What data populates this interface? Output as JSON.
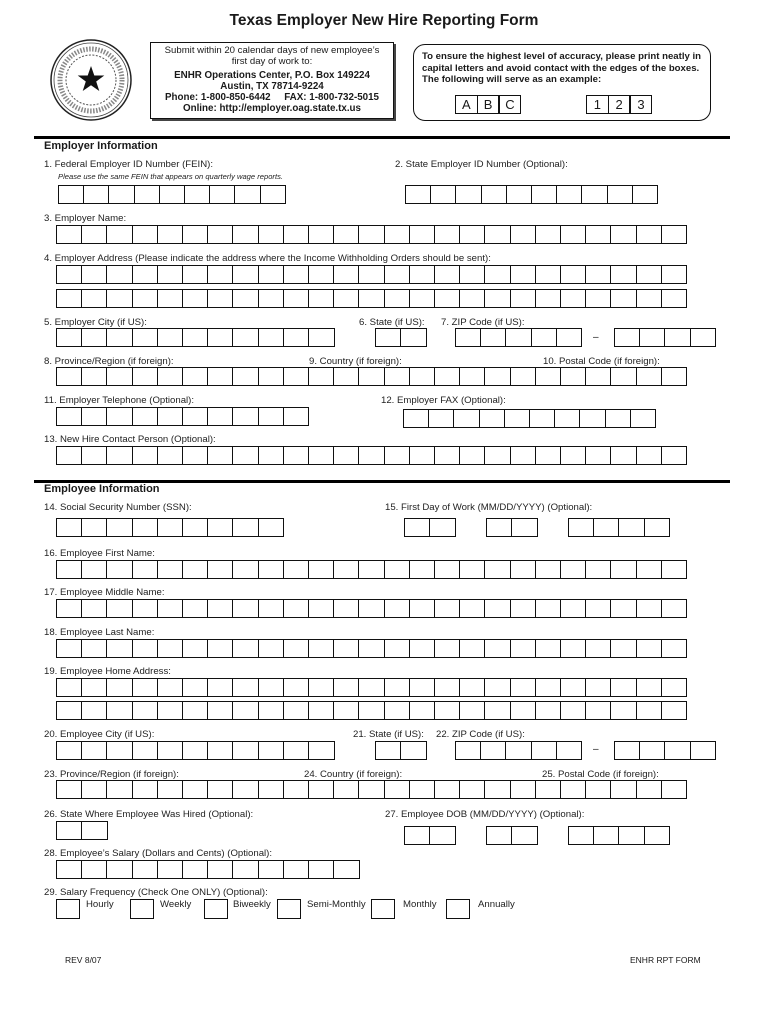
{
  "title": "Texas Employer New Hire Reporting Form",
  "seal": {
    "text_top": "THE ATTORNEY GENERAL",
    "text_bottom": "TEXAS"
  },
  "submit_box": {
    "line1": "Submit within 20 calendar days of new employee’s",
    "line2": "first day of work to:",
    "line3": "ENHR Operations Center, P.O. Box 149224",
    "line4": "Austin, TX 78714-9224",
    "line5": "Phone: 1-800-850-6442     FAX: 1-800-732-5015",
    "line6": "Online: http://employer.oag.state.tx.us"
  },
  "accuracy_box": {
    "text": "To ensure the highest level of accuracy, please print neatly in capital letters and avoid contact with the edges of the boxes. The following will serve as an example:",
    "letters": [
      "A",
      "B",
      "C"
    ],
    "digits": [
      "1",
      "2",
      "3"
    ]
  },
  "employer": {
    "heading": "Employer Information",
    "f1": "1. Federal Employer ID Number (FEIN):",
    "f1_note": "Please use the same FEIN that appears on quarterly wage reports.",
    "f2": "2. State Employer ID Number (Optional):",
    "f3": "3. Employer Name:",
    "f4": "4. Employer Address (Please indicate the address where the Income Withholding Orders should be sent):",
    "f5": "5. Employer City (if US):",
    "f6": "6. State (if US):",
    "f7": "7. ZIP Code (if US):",
    "f8": "8. Province/Region (if foreign):",
    "f9": "9. Country (if foreign):",
    "f10": "10. Postal Code (if foreign):",
    "f11": "11. Employer Telephone (Optional):",
    "f12": "12. Employer FAX (Optional):",
    "f13": "13. New Hire Contact Person (Optional):"
  },
  "employee": {
    "heading": "Employee Information",
    "f14": "14. Social Security Number (SSN):",
    "f15": "15. First Day of Work (MM/DD/YYYY) (Optional):",
    "f16": "16. Employee First Name:",
    "f17": "17. Employee Middle Name:",
    "f18": "18. Employee Last Name:",
    "f19": "19. Employee Home Address:",
    "f20": "20. Employee City (if US):",
    "f21": "21. State (if US):",
    "f22": "22. ZIP Code (if US):",
    "f23": "23. Province/Region (if foreign):",
    "f24": "24. Country (if foreign):",
    "f25": "25. Postal Code (if foreign):",
    "f26": "26. State Where Employee Was Hired (Optional):",
    "f27": "27. Employee DOB (MM/DD/YYYY) (Optional):",
    "f28": "28. Employee’s Salary (Dollars and Cents) (Optional):",
    "f29": "29. Salary Frequency (Check One ONLY) (Optional):",
    "frequencies": [
      "Hourly",
      "Weekly",
      "Biweekly",
      "Semi-Monthly",
      "Monthly",
      "Annually"
    ]
  },
  "zip_dash": "–",
  "footer": {
    "rev": "REV 8/07",
    "form_id": "ENHR RPT FORM"
  }
}
